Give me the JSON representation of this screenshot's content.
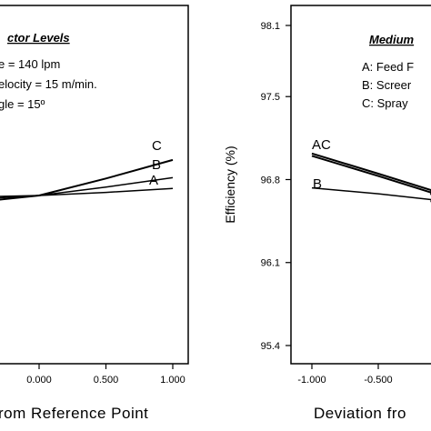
{
  "chart_data": [
    {
      "type": "line",
      "title": "",
      "xlabel": "rom Reference Point",
      "ylabel": "",
      "xlim": [
        -1.0,
        1.0
      ],
      "x_ticks": [
        "0.000",
        "0.500",
        "1.000"
      ],
      "legend": {
        "title": "ctor Levels",
        "lines": [
          "e = 140 lpm",
          "elocity = 15 m/min.",
          "gle = 15º"
        ]
      },
      "series": [
        {
          "name": "C",
          "x": [
            -0.5,
            0.0,
            0.5,
            1.0
          ],
          "y": [
            -0.09,
            0.0,
            0.22,
            0.46
          ]
        },
        {
          "name": "B",
          "x": [
            -0.5,
            0.0,
            0.5,
            1.0
          ],
          "y": [
            -0.05,
            0.0,
            0.11,
            0.23
          ]
        },
        {
          "name": "A",
          "x": [
            -0.5,
            0.0,
            0.5,
            1.0
          ],
          "y": [
            -0.02,
            0.0,
            0.04,
            0.09
          ]
        }
      ]
    },
    {
      "type": "line",
      "title": "",
      "xlabel": "Deviation fro",
      "ylabel": "Efficiency (%)",
      "xlim": [
        -1.0,
        -0.1
      ],
      "ylim": [
        95.3,
        98.2
      ],
      "x_ticks": [
        "-1.000",
        "-0.500"
      ],
      "y_ticks": [
        "98.1",
        "97.5",
        "96.8",
        "96.1",
        "95.4"
      ],
      "legend": {
        "title": "Medium",
        "lines": [
          "A: Feed F",
          "B: Screer",
          "C: Spray"
        ]
      },
      "series": [
        {
          "name": "A",
          "x": [
            -1.0,
            -0.5,
            -0.1
          ],
          "y": [
            97.0,
            96.83,
            96.69
          ]
        },
        {
          "name": "C",
          "x": [
            -1.0,
            -0.5,
            -0.1
          ],
          "y": [
            97.02,
            96.85,
            96.71
          ]
        },
        {
          "name": "B",
          "x": [
            -1.0,
            -0.5,
            -0.1
          ],
          "y": [
            96.73,
            96.68,
            96.63
          ]
        }
      ],
      "curve_labels": [
        "AC",
        "B"
      ]
    }
  ]
}
